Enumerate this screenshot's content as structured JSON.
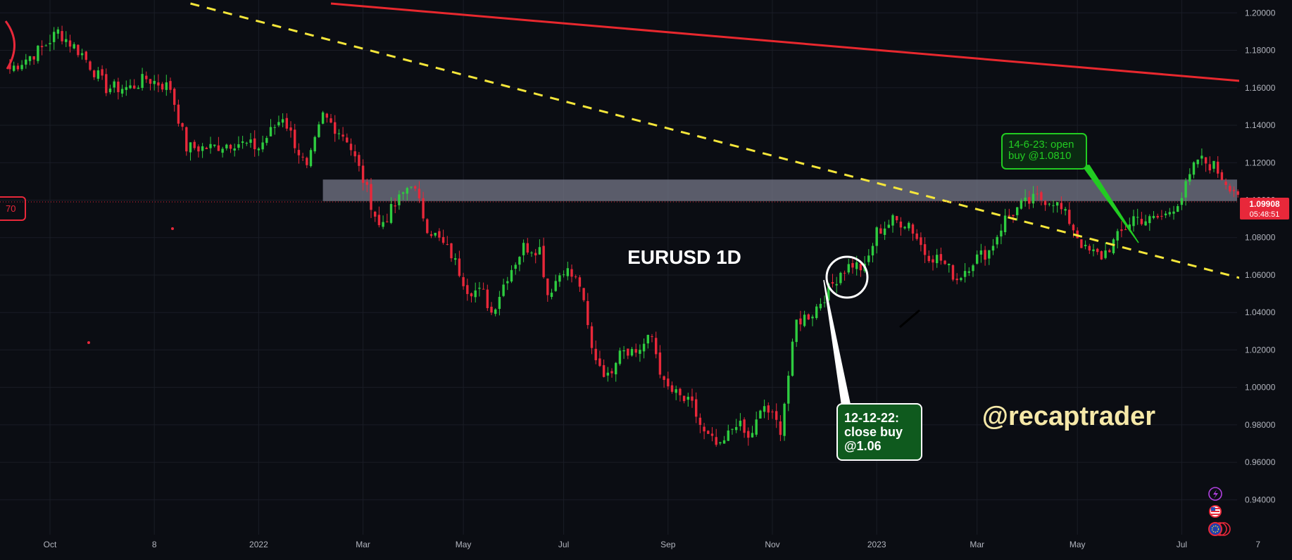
{
  "chart_data": {
    "type": "candlestick",
    "symbol_title": "EURUSD 1D",
    "watermark": "@recaptrader",
    "y_axis": {
      "min": 0.93,
      "max": 1.205,
      "ticks": [
        "1.20000",
        "1.18000",
        "1.16000",
        "1.14000",
        "1.12000",
        "1.10000",
        "1.08000",
        "1.06000",
        "1.04000",
        "1.02000",
        "1.00000",
        "0.98000",
        "0.96000",
        "0.94000"
      ],
      "tick_values": [
        1.2,
        1.18,
        1.16,
        1.14,
        1.12,
        1.1,
        1.08,
        1.06,
        1.04,
        1.02,
        1.0,
        0.98,
        0.96,
        0.94
      ]
    },
    "x_axis": {
      "ticks": [
        "Oct",
        "8",
        "2022",
        "Mar",
        "May",
        "Jul",
        "Sep",
        "Nov",
        "2023",
        "Mar",
        "May",
        "Jul",
        "7"
      ],
      "tick_index": [
        10,
        36,
        62,
        88,
        113,
        138,
        164,
        190,
        216,
        241,
        266,
        292,
        311
      ]
    },
    "bar_count": 313,
    "current_price": {
      "label": "1.09908",
      "countdown": "05:48:51",
      "value": 1.09908
    },
    "left_edge_label": "70",
    "zone": {
      "from_index": 78,
      "to_index": 313,
      "low": 1.0995,
      "high": 1.111
    },
    "trendlines": [
      {
        "name": "red-long-trendline",
        "color": "#e8282e",
        "style": "solid",
        "start": [
          80,
          1.205
        ],
        "end": [
          313,
          1.1625
        ]
      },
      {
        "name": "yellow-dashed-trendline",
        "color": "#f5e63a",
        "style": "dashed",
        "start": [
          45,
          1.205
        ],
        "end": [
          313,
          1.0548
        ]
      }
    ],
    "annotations": [
      {
        "name": "open-buy-note",
        "text_lines": [
          "14-6-23: open",
          "buy @1.0810"
        ],
        "color": "#22cc22",
        "bg": "#0b2a12",
        "anchor": [
          285,
          1.078
        ]
      },
      {
        "name": "close-buy-note",
        "text_lines": [
          "12-12-22:",
          "close buy",
          "@1.06"
        ],
        "color": "#ffffff",
        "bg": "#0f5a1e",
        "anchor": [
          206,
          1.06
        ]
      }
    ],
    "colors": {
      "up": "#2ecc40",
      "down": "#e8283a",
      "background": "#0b0d13",
      "grid": "#1a1d26",
      "text": "#b2b5be",
      "price_tag": "#e8283a",
      "watermark": "#f5e8a8"
    },
    "icons": [
      "lightning-icon",
      "us-flag-icon",
      "eu-flag-icon"
    ],
    "anchors": [
      [
        0,
        1.17
      ],
      [
        8,
        1.181
      ],
      [
        12,
        1.19
      ],
      [
        18,
        1.178
      ],
      [
        24,
        1.16
      ],
      [
        30,
        1.16
      ],
      [
        34,
        1.165
      ],
      [
        40,
        1.16
      ],
      [
        44,
        1.128
      ],
      [
        50,
        1.128
      ],
      [
        56,
        1.131
      ],
      [
        62,
        1.128
      ],
      [
        68,
        1.145
      ],
      [
        74,
        1.116
      ],
      [
        78,
        1.145
      ],
      [
        84,
        1.133
      ],
      [
        88,
        1.111
      ],
      [
        92,
        1.086
      ],
      [
        96,
        1.097
      ],
      [
        100,
        1.11
      ],
      [
        104,
        1.086
      ],
      [
        110,
        1.071
      ],
      [
        114,
        1.053
      ],
      [
        118,
        1.05
      ],
      [
        120,
        1.04
      ],
      [
        124,
        1.06
      ],
      [
        128,
        1.075
      ],
      [
        132,
        1.074
      ],
      [
        134,
        1.05
      ],
      [
        138,
        1.064
      ],
      [
        142,
        1.055
      ],
      [
        145,
        1.02
      ],
      [
        149,
        1.005
      ],
      [
        152,
        1.022
      ],
      [
        156,
        1.019
      ],
      [
        160,
        1.027
      ],
      [
        163,
        1.001
      ],
      [
        166,
        0.996
      ],
      [
        170,
        0.99
      ],
      [
        173,
        0.975
      ],
      [
        177,
        0.967
      ],
      [
        181,
        0.982
      ],
      [
        184,
        0.972
      ],
      [
        188,
        0.99
      ],
      [
        192,
        0.978
      ],
      [
        196,
        1.035
      ],
      [
        200,
        1.04
      ],
      [
        204,
        1.052
      ],
      [
        207,
        1.062
      ],
      [
        210,
        1.066
      ],
      [
        213,
        1.063
      ],
      [
        216,
        1.083
      ],
      [
        220,
        1.089
      ],
      [
        224,
        1.088
      ],
      [
        228,
        1.072
      ],
      [
        232,
        1.068
      ],
      [
        236,
        1.058
      ],
      [
        240,
        1.068
      ],
      [
        244,
        1.073
      ],
      [
        248,
        1.09
      ],
      [
        252,
        1.097
      ],
      [
        256,
        1.101
      ],
      [
        260,
        1.1
      ],
      [
        264,
        1.089
      ],
      [
        268,
        1.073
      ],
      [
        272,
        1.07
      ],
      [
        276,
        1.08
      ],
      [
        280,
        1.091
      ],
      [
        284,
        1.089
      ],
      [
        288,
        1.092
      ],
      [
        292,
        1.102
      ],
      [
        296,
        1.122
      ],
      [
        300,
        1.118
      ],
      [
        303,
        1.11
      ],
      [
        306,
        1.104
      ],
      [
        308,
        1.099
      ]
    ]
  }
}
